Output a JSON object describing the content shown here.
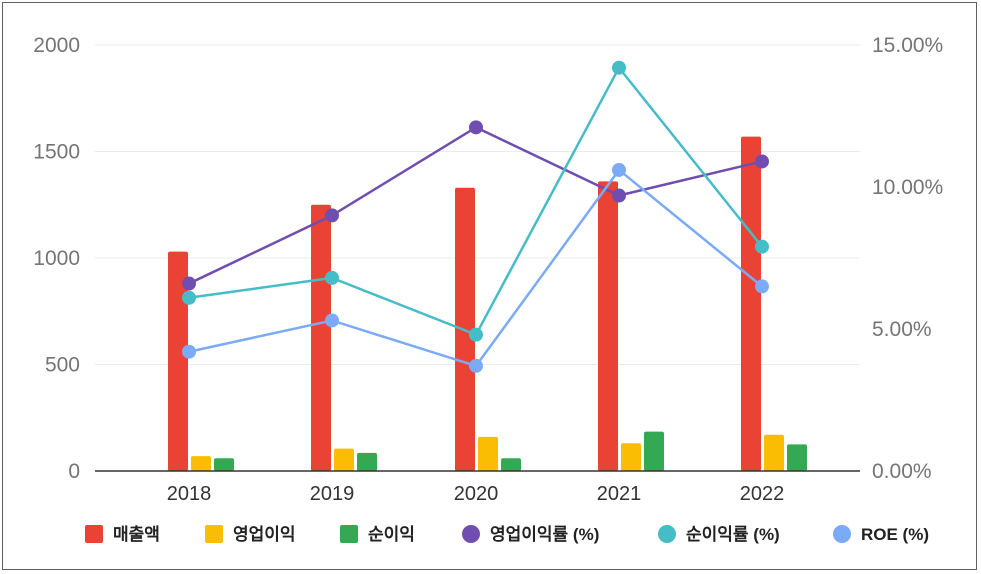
{
  "chart_data": {
    "type": "bar",
    "categories": [
      "2018",
      "2019",
      "2020",
      "2021",
      "2022"
    ],
    "left_axis": {
      "ticks": [
        "0",
        "500",
        "1000",
        "1500",
        "2000"
      ],
      "ylim": [
        0,
        2000
      ]
    },
    "right_axis": {
      "ticks": [
        "0.00%",
        "5.00%",
        "10.00%",
        "15.00%"
      ],
      "ylim": [
        0,
        15
      ]
    },
    "bar_series": [
      {
        "name": "매출액",
        "color": "#ea4335",
        "values": [
          1030,
          1250,
          1330,
          1360,
          1570
        ]
      },
      {
        "name": "영업이익",
        "color": "#fbbc04",
        "values": [
          70,
          105,
          160,
          130,
          170
        ]
      },
      {
        "name": "순이익",
        "color": "#34a853",
        "values": [
          60,
          85,
          60,
          185,
          125
        ]
      }
    ],
    "line_series": [
      {
        "name": "영업이익률 (%)",
        "color": "#6f4eb0",
        "values": [
          6.6,
          9.0,
          12.1,
          9.7,
          10.9
        ]
      },
      {
        "name": "순이익률 (%)",
        "color": "#46bdc6",
        "values": [
          6.1,
          6.8,
          4.8,
          14.2,
          7.9
        ]
      },
      {
        "name": "ROE (%)",
        "color": "#7baaf7",
        "values": [
          4.2,
          5.3,
          3.7,
          10.6,
          6.5
        ]
      }
    ],
    "grid": true,
    "legend_position": "bottom"
  }
}
